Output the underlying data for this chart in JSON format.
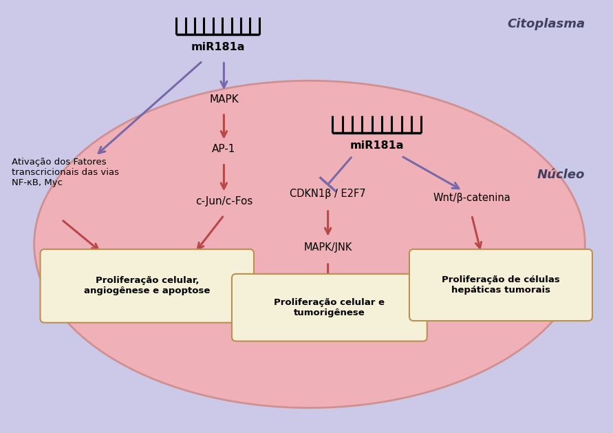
{
  "fig_width": 8.91,
  "fig_height": 6.29,
  "bg_outer_color": "#ccc8e8",
  "ellipse_facecolor": "#f0b0b8",
  "ellipse_edgecolor": "#d09090",
  "box_facecolor": "#f5f0d8",
  "box_edgecolor": "#b89050",
  "arrow_red": "#b84848",
  "arrow_purple": "#7868a8",
  "title_citoplasma": "Citoplasma",
  "title_nucleo": "Núcleo",
  "label_mirna1": "miR181a",
  "label_mirna2": "miR181a",
  "label_mapk": "MAPK",
  "label_ap1": "AP-1",
  "label_cjun": "c-Jun/c-Fos",
  "label_ativacao": "Ativação dos Fatores\ntranscricionais das vias\nNF-κB, Myc",
  "label_cdkn": "CDKN1β / E2F7",
  "label_mapkjnk": "MAPK/JNK",
  "label_wnt": "Wnt/β-catenina",
  "box1_text": "Proliferação celular,\nangiogênese e apoptose",
  "box2_text": "Proliferação celular e\ntumorigênese",
  "box3_text": "Proliferação de células\nhepáticas tumorais"
}
